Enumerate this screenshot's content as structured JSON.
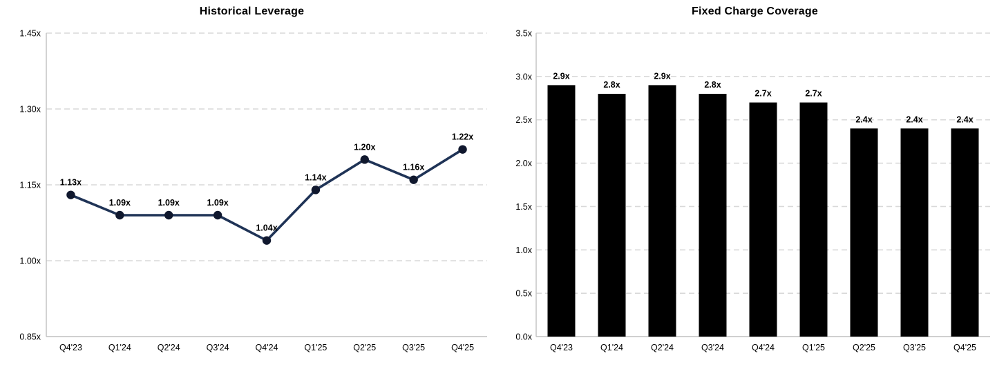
{
  "page": {
    "background_color": "#ffffff",
    "text_color": "#000000"
  },
  "styles": {
    "grid_color": "#d9d9d9",
    "axis_color": "#c0c0c0"
  },
  "chart_data": [
    {
      "type": "line",
      "title": "Historical Leverage",
      "categories": [
        "Q4'23",
        "Q1'24",
        "Q2'24",
        "Q3'24",
        "Q4'24",
        "Q1'25",
        "Q2'25",
        "Q3'25",
        "Q4'25"
      ],
      "values": [
        1.13,
        1.09,
        1.09,
        1.09,
        1.04,
        1.14,
        1.2,
        1.16,
        1.22
      ],
      "point_labels": [
        "1.13x",
        "1.09x",
        "1.09x",
        "1.09x",
        "1.04x",
        "1.14x",
        "1.20x",
        "1.16x",
        "1.22x"
      ],
      "ylim": [
        0.85,
        1.45
      ],
      "yticks": [
        {
          "value": 1.45,
          "label": "1.45x"
        },
        {
          "value": 1.3,
          "label": "1.30x"
        },
        {
          "value": 1.15,
          "label": "1.15x"
        },
        {
          "value": 1.0,
          "label": "1.00x"
        },
        {
          "value": 0.85,
          "label": "0.85x"
        }
      ],
      "grid": "horizontal-dashed",
      "legend": "none",
      "xlabel": "",
      "ylabel": "",
      "colors": {
        "line": "#1f3356",
        "marker": "#10182e",
        "label": "#000000"
      }
    },
    {
      "type": "bar",
      "title": "Fixed Charge Coverage",
      "categories": [
        "Q4'23",
        "Q1'24",
        "Q2'24",
        "Q3'24",
        "Q4'24",
        "Q1'25",
        "Q2'25",
        "Q3'25",
        "Q4'25"
      ],
      "values": [
        2.9,
        2.8,
        2.9,
        2.8,
        2.7,
        2.7,
        2.4,
        2.4,
        2.4
      ],
      "bar_labels": [
        "2.9x",
        "2.8x",
        "2.9x",
        "2.8x",
        "2.7x",
        "2.7x",
        "2.4x",
        "2.4x",
        "2.4x"
      ],
      "ylim": [
        0,
        3.5
      ],
      "yticks": [
        {
          "value": 3.5,
          "label": "3.5x"
        },
        {
          "value": 3.0,
          "label": "3.0x"
        },
        {
          "value": 2.5,
          "label": "2.5x"
        },
        {
          "value": 2.0,
          "label": "2.0x"
        },
        {
          "value": 1.5,
          "label": "1.5x"
        },
        {
          "value": 1.0,
          "label": "1.0x"
        },
        {
          "value": 0.5,
          "label": "0.5x"
        },
        {
          "value": 0.0,
          "label": "0.0x"
        }
      ],
      "grid": "horizontal-dashed",
      "legend": "none",
      "xlabel": "",
      "ylabel": "",
      "colors": {
        "bar": "#000000",
        "label": "#000000"
      }
    }
  ]
}
